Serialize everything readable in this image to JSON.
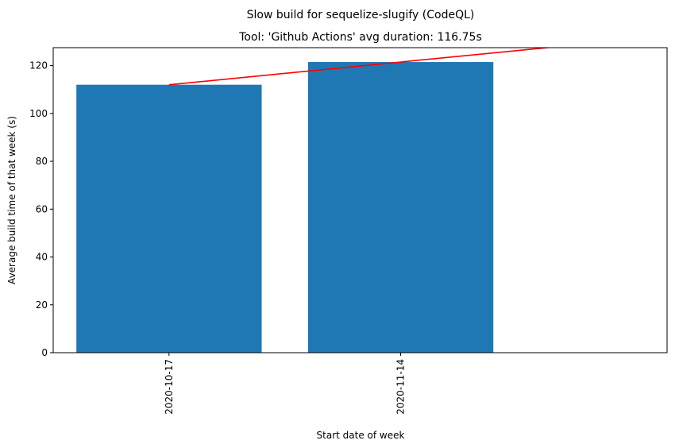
{
  "chart_data": {
    "type": "bar",
    "suptitle": "Slow build for sequelize-slugify (CodeQL)",
    "title": "Tool: 'Github Actions' avg duration: 116.75s",
    "xlabel": "Start date of week",
    "ylabel": "Average build time of that week (s)",
    "categories": [
      "2020-10-17",
      "2020-11-14"
    ],
    "values": [
      112.0,
      121.5
    ],
    "ylim": [
      0,
      127.5
    ],
    "yticks": [
      0,
      20,
      40,
      60,
      80,
      100,
      120
    ],
    "xlim": [
      -0.5,
      2.15
    ],
    "trend_line": {
      "x": [
        0,
        2
      ],
      "y": [
        112.0,
        131.0
      ]
    },
    "bar_color": "#1f77b4",
    "trend_color": "#ff0000",
    "grid": false,
    "legend": "none"
  }
}
